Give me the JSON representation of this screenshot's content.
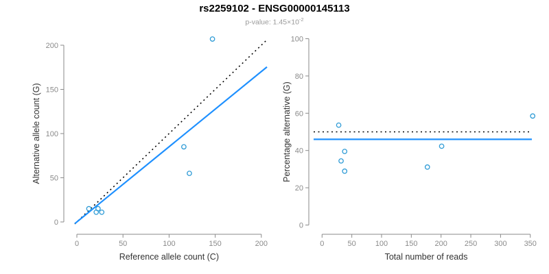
{
  "header": {
    "title": "rs2259102 - ENSG00000145113",
    "subtitle_prefix": "p-value: 1.45×10",
    "subtitle_exponent": "-2"
  },
  "colors": {
    "title": "#000000",
    "subtitle": "#999999",
    "axis": "#8a8a8a",
    "tick_label": "#8a8a8a",
    "axis_title": "#333333",
    "point_stroke": "#2E9BD6",
    "fit_line": "#1E90FF",
    "reference_line": "#000000",
    "background": "#ffffff"
  },
  "chart_data": [
    {
      "type": "scatter",
      "panel": "left",
      "xlabel": "Reference allele count (C)",
      "ylabel": "Alternative allele count (G)",
      "xlim": [
        0,
        200
      ],
      "ylim": [
        0,
        200
      ],
      "xticks": [
        0,
        50,
        100,
        150,
        200
      ],
      "yticks": [
        0,
        50,
        100,
        150,
        200
      ],
      "points": [
        [
          13,
          15
        ],
        [
          21,
          11
        ],
        [
          23,
          15
        ],
        [
          27,
          11
        ],
        [
          116,
          85
        ],
        [
          122,
          55
        ],
        [
          147,
          207
        ]
      ],
      "lines": [
        {
          "kind": "abline",
          "slope": 1,
          "intercept": 0,
          "style": "dotted",
          "color_key": "reference_line"
        },
        {
          "kind": "abline",
          "slope": 0.851,
          "intercept": 0,
          "style": "solid",
          "color_key": "fit_line"
        }
      ],
      "grid": false,
      "legend": null
    },
    {
      "type": "scatter",
      "panel": "right",
      "xlabel": "Total number of reads",
      "ylabel": "Percentage alternative (G)",
      "xlim": [
        0,
        350
      ],
      "ylim": [
        0,
        100
      ],
      "xticks": [
        0,
        50,
        100,
        150,
        200,
        250,
        300,
        350
      ],
      "yticks": [
        0,
        20,
        40,
        60,
        80,
        100
      ],
      "points": [
        [
          28,
          53.6
        ],
        [
          32,
          34.4
        ],
        [
          38,
          39.5
        ],
        [
          38,
          28.9
        ],
        [
          177,
          31.1
        ],
        [
          201,
          42.3
        ],
        [
          354,
          58.5
        ]
      ],
      "lines": [
        {
          "kind": "hline",
          "y": 50,
          "style": "dotted",
          "color_key": "reference_line"
        },
        {
          "kind": "hline",
          "y": 46,
          "style": "solid",
          "color_key": "fit_line"
        }
      ],
      "grid": false,
      "legend": null
    }
  ]
}
